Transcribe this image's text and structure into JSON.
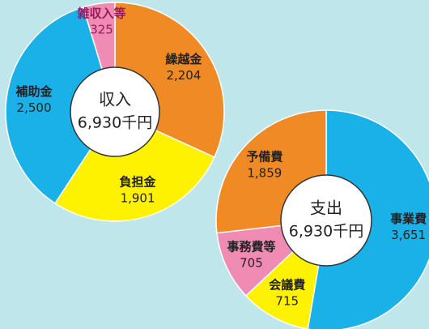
{
  "chart_data": [
    {
      "type": "pie",
      "center_title": "収入",
      "center_total": "6,930千円",
      "categories": [
        "繰越金",
        "負担金",
        "補助金",
        "雑収入等"
      ],
      "values": [
        2204,
        1901,
        2500,
        325
      ],
      "value_labels": [
        "2,204",
        "1,901",
        "2,500",
        "325"
      ],
      "colors": [
        "#f08a24",
        "#fff200",
        "#1ab0e8",
        "#f08cb4"
      ]
    },
    {
      "type": "pie",
      "center_title": "支出",
      "center_total": "6,930千円",
      "categories": [
        "事業費",
        "会議費",
        "事務費等",
        "予備費"
      ],
      "values": [
        3651,
        715,
        705,
        1859
      ],
      "value_labels": [
        "3,651",
        "715",
        "705",
        "1,859"
      ],
      "colors": [
        "#1ab0e8",
        "#fff200",
        "#f08cb4",
        "#f08a24"
      ]
    }
  ]
}
